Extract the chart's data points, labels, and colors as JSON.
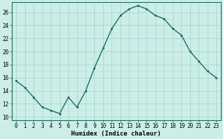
{
  "x": [
    0,
    1,
    2,
    3,
    4,
    5,
    6,
    7,
    8,
    9,
    10,
    11,
    12,
    13,
    14,
    15,
    16,
    17,
    18,
    19,
    20,
    21,
    22,
    23
  ],
  "y": [
    15.5,
    14.5,
    13,
    11.5,
    11,
    10.5,
    13,
    11.5,
    14,
    17.5,
    20.5,
    23.5,
    25.5,
    26.5,
    27,
    26.5,
    25.5,
    25,
    23.5,
    22.5,
    20,
    18.5,
    17,
    16
  ],
  "line_color": "#1a6b5a",
  "marker": "s",
  "marker_size": 2.0,
  "bg_color": "#cceee8",
  "grid_major_color": "#aad4ce",
  "grid_minor_color": "#c0e4de",
  "xlabel": "Humidex (Indice chaleur)",
  "ylim": [
    9.5,
    27.5
  ],
  "xlim": [
    -0.5,
    23.5
  ],
  "yticks": [
    10,
    12,
    14,
    16,
    18,
    20,
    22,
    24,
    26
  ],
  "xticks": [
    0,
    1,
    2,
    3,
    4,
    5,
    6,
    7,
    8,
    9,
    10,
    11,
    12,
    13,
    14,
    15,
    16,
    17,
    18,
    19,
    20,
    21,
    22,
    23
  ],
  "xlabel_fontsize": 6.5,
  "tick_fontsize": 5.5,
  "line_width": 1.0
}
